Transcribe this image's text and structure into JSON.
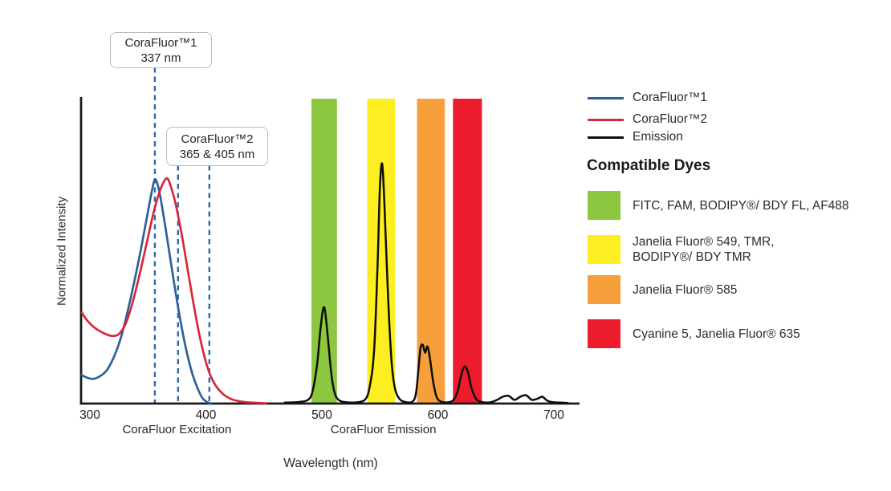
{
  "chart_data": {
    "type": "line",
    "xlabel": "Wavelength (nm)",
    "ylabel": "Normalized Intensity",
    "x_ticks": [
      300,
      400,
      500,
      600,
      700
    ],
    "x_range_nm": [
      293,
      722
    ],
    "ylim": [
      0,
      1
    ],
    "grid": false,
    "region_labels": [
      {
        "text": "CoraFluor Excitation",
        "center_nm": 375
      },
      {
        "text": "CoraFluor Emission",
        "center_nm": 553
      }
    ],
    "callouts": [
      {
        "line1": "CoraFluor™1",
        "line2": "337 nm",
        "lines_nm": [
          356
        ]
      },
      {
        "line1": "CoraFluor™2",
        "line2": "365 & 405 nm",
        "lines_nm": [
          376,
          403
        ]
      }
    ],
    "marker_color": "#2e6ca8",
    "bands": [
      {
        "dyes": "FITC, FAM, BODIPY®/ BDY FL, AF488",
        "color": "#8dc63f",
        "range_nm": [
          491,
          513
        ]
      },
      {
        "dyes": "Janelia Fluor® 549, TMR, BODIPY®/ BDY TMR",
        "color": "#fcee21",
        "range_nm": [
          539,
          563
        ]
      },
      {
        "dyes": "Janelia Fluor® 585",
        "color": "#f7a03b",
        "range_nm": [
          582,
          606
        ]
      },
      {
        "dyes": "Cyanine 5, Janelia Fluor® 635",
        "color": "#ec1c2c",
        "range_nm": [
          613,
          638
        ]
      }
    ],
    "series": [
      {
        "name": "CoraFluor™1",
        "color": "#2e6095",
        "points": [
          [
            293,
            0.092
          ],
          [
            298,
            0.083
          ],
          [
            303,
            0.08
          ],
          [
            308,
            0.087
          ],
          [
            314,
            0.105
          ],
          [
            320,
            0.145
          ],
          [
            326,
            0.205
          ],
          [
            332,
            0.29
          ],
          [
            338,
            0.39
          ],
          [
            344,
            0.5
          ],
          [
            349,
            0.6
          ],
          [
            353,
            0.68
          ],
          [
            356,
            0.725
          ],
          [
            359,
            0.7
          ],
          [
            363,
            0.62
          ],
          [
            368,
            0.5
          ],
          [
            373,
            0.38
          ],
          [
            378,
            0.27
          ],
          [
            383,
            0.175
          ],
          [
            388,
            0.1
          ],
          [
            393,
            0.048
          ],
          [
            397,
            0.018
          ],
          [
            401,
            0.005
          ],
          [
            404,
            0.001
          ]
        ]
      },
      {
        "name": "CoraFluor™2",
        "color": "#d5293b",
        "points": [
          [
            293,
            0.295
          ],
          [
            297,
            0.272
          ],
          [
            302,
            0.252
          ],
          [
            307,
            0.238
          ],
          [
            313,
            0.226
          ],
          [
            319,
            0.219
          ],
          [
            325,
            0.225
          ],
          [
            331,
            0.26
          ],
          [
            337,
            0.33
          ],
          [
            343,
            0.42
          ],
          [
            349,
            0.52
          ],
          [
            355,
            0.62
          ],
          [
            360,
            0.685
          ],
          [
            364,
            0.72
          ],
          [
            367,
            0.728
          ],
          [
            370,
            0.7
          ],
          [
            374,
            0.645
          ],
          [
            379,
            0.55
          ],
          [
            384,
            0.44
          ],
          [
            389,
            0.33
          ],
          [
            394,
            0.23
          ],
          [
            399,
            0.148
          ],
          [
            404,
            0.09
          ],
          [
            409,
            0.055
          ],
          [
            415,
            0.03
          ],
          [
            421,
            0.016
          ],
          [
            428,
            0.008
          ],
          [
            436,
            0.004
          ],
          [
            445,
            0.002
          ],
          [
            452,
            0.001
          ]
        ]
      },
      {
        "name": "Emission",
        "color": "#0e0e0e",
        "points": [
          [
            468,
            0.003
          ],
          [
            480,
            0.005
          ],
          [
            488,
            0.012
          ],
          [
            492,
            0.04
          ],
          [
            496,
            0.13
          ],
          [
            499,
            0.25
          ],
          [
            502,
            0.312
          ],
          [
            505,
            0.22
          ],
          [
            508,
            0.1
          ],
          [
            511,
            0.035
          ],
          [
            515,
            0.01
          ],
          [
            522,
            0.004
          ],
          [
            530,
            0.004
          ],
          [
            537,
            0.012
          ],
          [
            541,
            0.05
          ],
          [
            545,
            0.17
          ],
          [
            548,
            0.45
          ],
          [
            550,
            0.7
          ],
          [
            552,
            0.776
          ],
          [
            554,
            0.64
          ],
          [
            557,
            0.35
          ],
          [
            560,
            0.14
          ],
          [
            563,
            0.05
          ],
          [
            567,
            0.015
          ],
          [
            572,
            0.005
          ],
          [
            578,
            0.006
          ],
          [
            581,
            0.03
          ],
          [
            583,
            0.1
          ],
          [
            585,
            0.178
          ],
          [
            587,
            0.19
          ],
          [
            589,
            0.165
          ],
          [
            591,
            0.185
          ],
          [
            593,
            0.15
          ],
          [
            596,
            0.07
          ],
          [
            599,
            0.02
          ],
          [
            603,
            0.006
          ],
          [
            608,
            0.004
          ],
          [
            613,
            0.01
          ],
          [
            617,
            0.04
          ],
          [
            620,
            0.09
          ],
          [
            623,
            0.12
          ],
          [
            626,
            0.1
          ],
          [
            629,
            0.05
          ],
          [
            633,
            0.015
          ],
          [
            638,
            0.005
          ],
          [
            645,
            0.004
          ],
          [
            650,
            0.01
          ],
          [
            656,
            0.022
          ],
          [
            661,
            0.025
          ],
          [
            666,
            0.012
          ],
          [
            671,
            0.022
          ],
          [
            676,
            0.027
          ],
          [
            681,
            0.012
          ],
          [
            686,
            0.016
          ],
          [
            690,
            0.022
          ],
          [
            694,
            0.01
          ],
          [
            698,
            0.005
          ],
          [
            705,
            0.003
          ],
          [
            712,
            0.002
          ]
        ]
      }
    ]
  },
  "legend": {
    "items": [
      {
        "label": "CoraFluor™1",
        "color": "#2e6095"
      },
      {
        "label": "CoraFluor™2",
        "color": "#d5293b"
      },
      {
        "label": "Emission",
        "color": "#0e0e0e"
      }
    ]
  },
  "dyes": {
    "heading": "Compatible Dyes",
    "items": [
      {
        "color": "#8dc63f",
        "line1": "FITC, FAM, BODIPY®/ BDY FL, AF488",
        "line2": ""
      },
      {
        "color": "#fcee21",
        "line1": "Janelia Fluor® 549, TMR,",
        "line2": "BODIPY®/ BDY TMR"
      },
      {
        "color": "#f7a03b",
        "line1": "Janelia Fluor® 585",
        "line2": ""
      },
      {
        "color": "#ec1c2c",
        "line1": "Cyanine 5, Janelia Fluor® 635",
        "line2": ""
      }
    ]
  }
}
